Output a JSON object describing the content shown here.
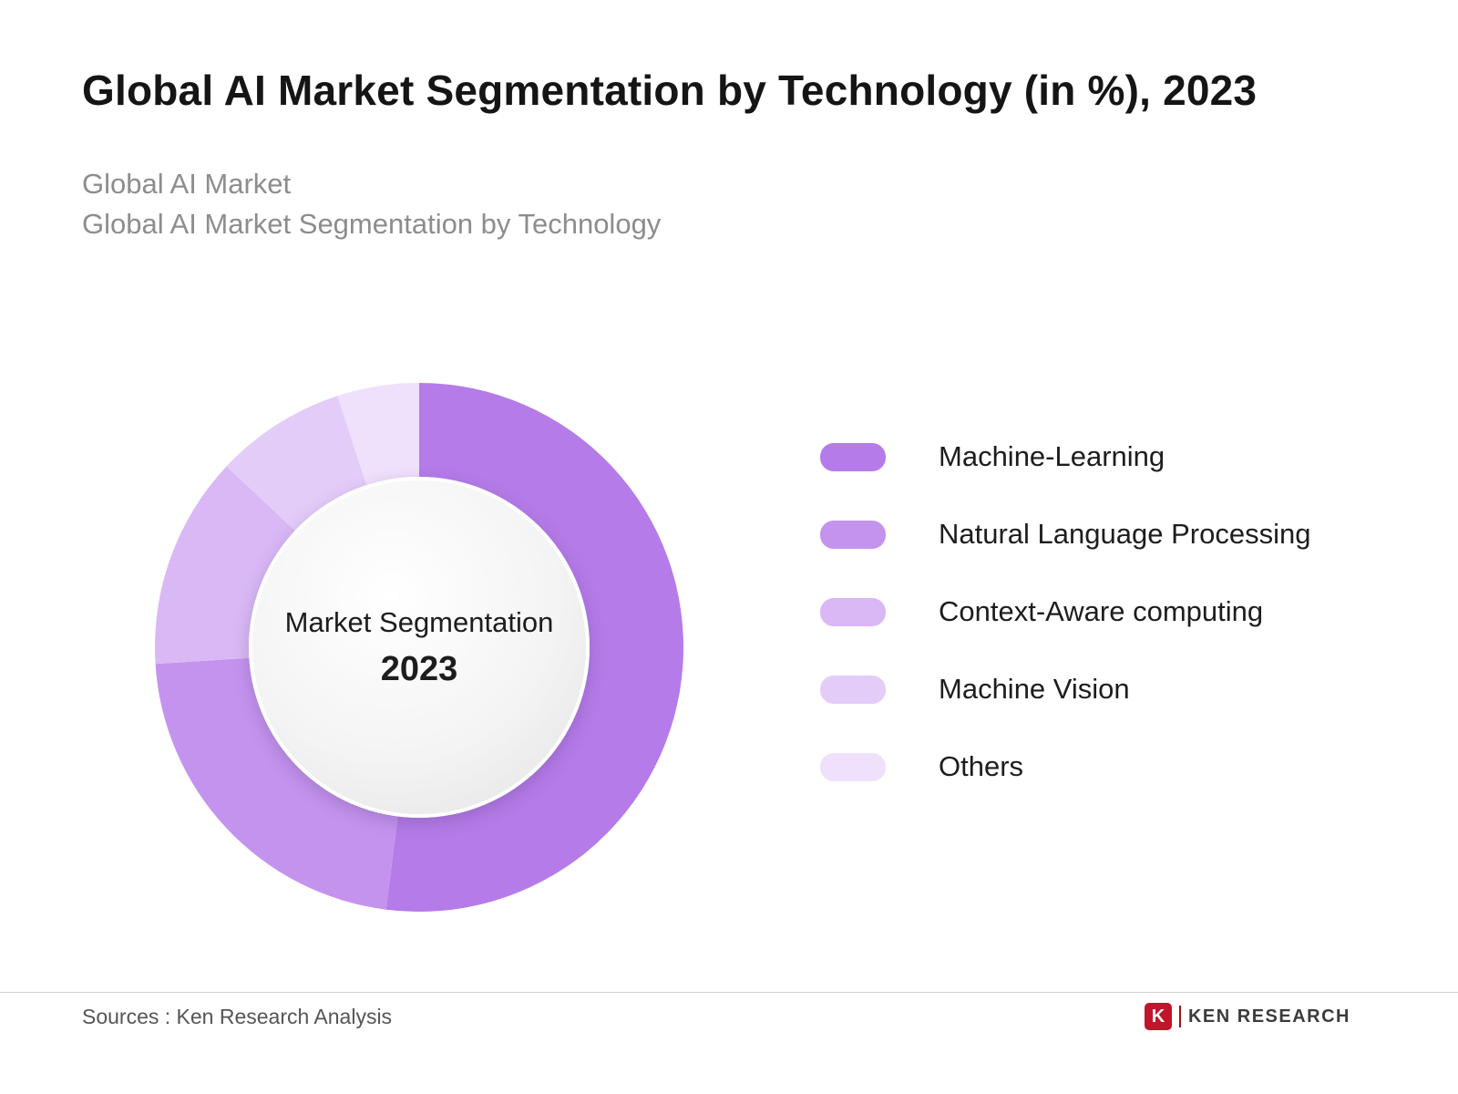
{
  "header": {
    "title": "Global AI Market Segmentation by Technology (in %), 2023",
    "subtitle_line1": "Global AI Market",
    "subtitle_line2": "Global AI Market Segmentation by Technology"
  },
  "chart_data": {
    "type": "pie",
    "style": "donut",
    "title": "Global AI Market Segmentation by Technology (in %), 2023",
    "center_label_line1": "Market Segmentation",
    "center_label_line2": "2023",
    "start_angle_deg": 0,
    "direction": "clockwise",
    "legend_position": "right",
    "segments": [
      {
        "label": "Machine-Learning",
        "value": 52,
        "color": "#b57be8"
      },
      {
        "label": "Natural Language Processing",
        "value": 22,
        "color": "#c493ee"
      },
      {
        "label": "Context-Aware computing",
        "value": 13,
        "color": "#d9b8f5"
      },
      {
        "label": "Machine Vision",
        "value": 8,
        "color": "#e4ccf9"
      },
      {
        "label": "Others",
        "value": 5,
        "color": "#efe0fc"
      }
    ]
  },
  "footer": {
    "source_text": "Sources : Ken Research Analysis",
    "brand_icon_letter": "K",
    "brand_name": "KEN RESEARCH"
  }
}
